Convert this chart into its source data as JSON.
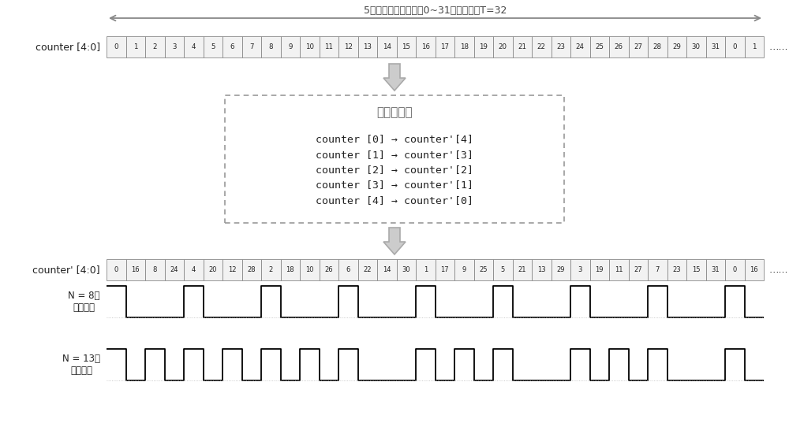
{
  "title_arrow_text": "5位计数器，计数范围0~31，计数周期T=32",
  "counter_label": "counter [4:0]",
  "counter_prime_label": "counter' [4:0]",
  "counter_values": [
    0,
    1,
    2,
    3,
    4,
    5,
    6,
    7,
    8,
    9,
    10,
    11,
    12,
    13,
    14,
    15,
    16,
    17,
    18,
    19,
    20,
    21,
    22,
    23,
    24,
    25,
    26,
    27,
    28,
    29,
    30,
    31,
    0,
    1
  ],
  "counter_prime_values": [
    0,
    16,
    8,
    24,
    4,
    20,
    12,
    28,
    2,
    18,
    10,
    26,
    6,
    22,
    14,
    30,
    1,
    17,
    9,
    25,
    5,
    21,
    13,
    29,
    3,
    19,
    11,
    27,
    7,
    23,
    15,
    31,
    0,
    16
  ],
  "box_title": "计数位调换",
  "box_lines": [
    "counter [0] → counter'[4]",
    "counter [1] → counter'[3]",
    "counter [2] → counter'[2]",
    "counter [3] → counter'[1]",
    "counter [4] → counter'[0]"
  ],
  "waveform1_label": "N = 8时\n输出波形",
  "waveform2_label": "N = 13时\n输出波形",
  "bg_color": "#ffffff",
  "text_color": "#222222",
  "cell_face_color": "#f2f2f2",
  "cell_edge_color": "#888888",
  "box_edge_color": "#999999",
  "arrow_color": "#aaaaaa",
  "top_arrow_color": "#888888",
  "dots_text": "…...",
  "wave_prime_vals": [
    0,
    16,
    8,
    24,
    4,
    20,
    12,
    28,
    2,
    18,
    10,
    26,
    6,
    22,
    14,
    30,
    1,
    17,
    9,
    25,
    5,
    21,
    13,
    29,
    3,
    19,
    11,
    27,
    7,
    23,
    15,
    31,
    0,
    16
  ]
}
